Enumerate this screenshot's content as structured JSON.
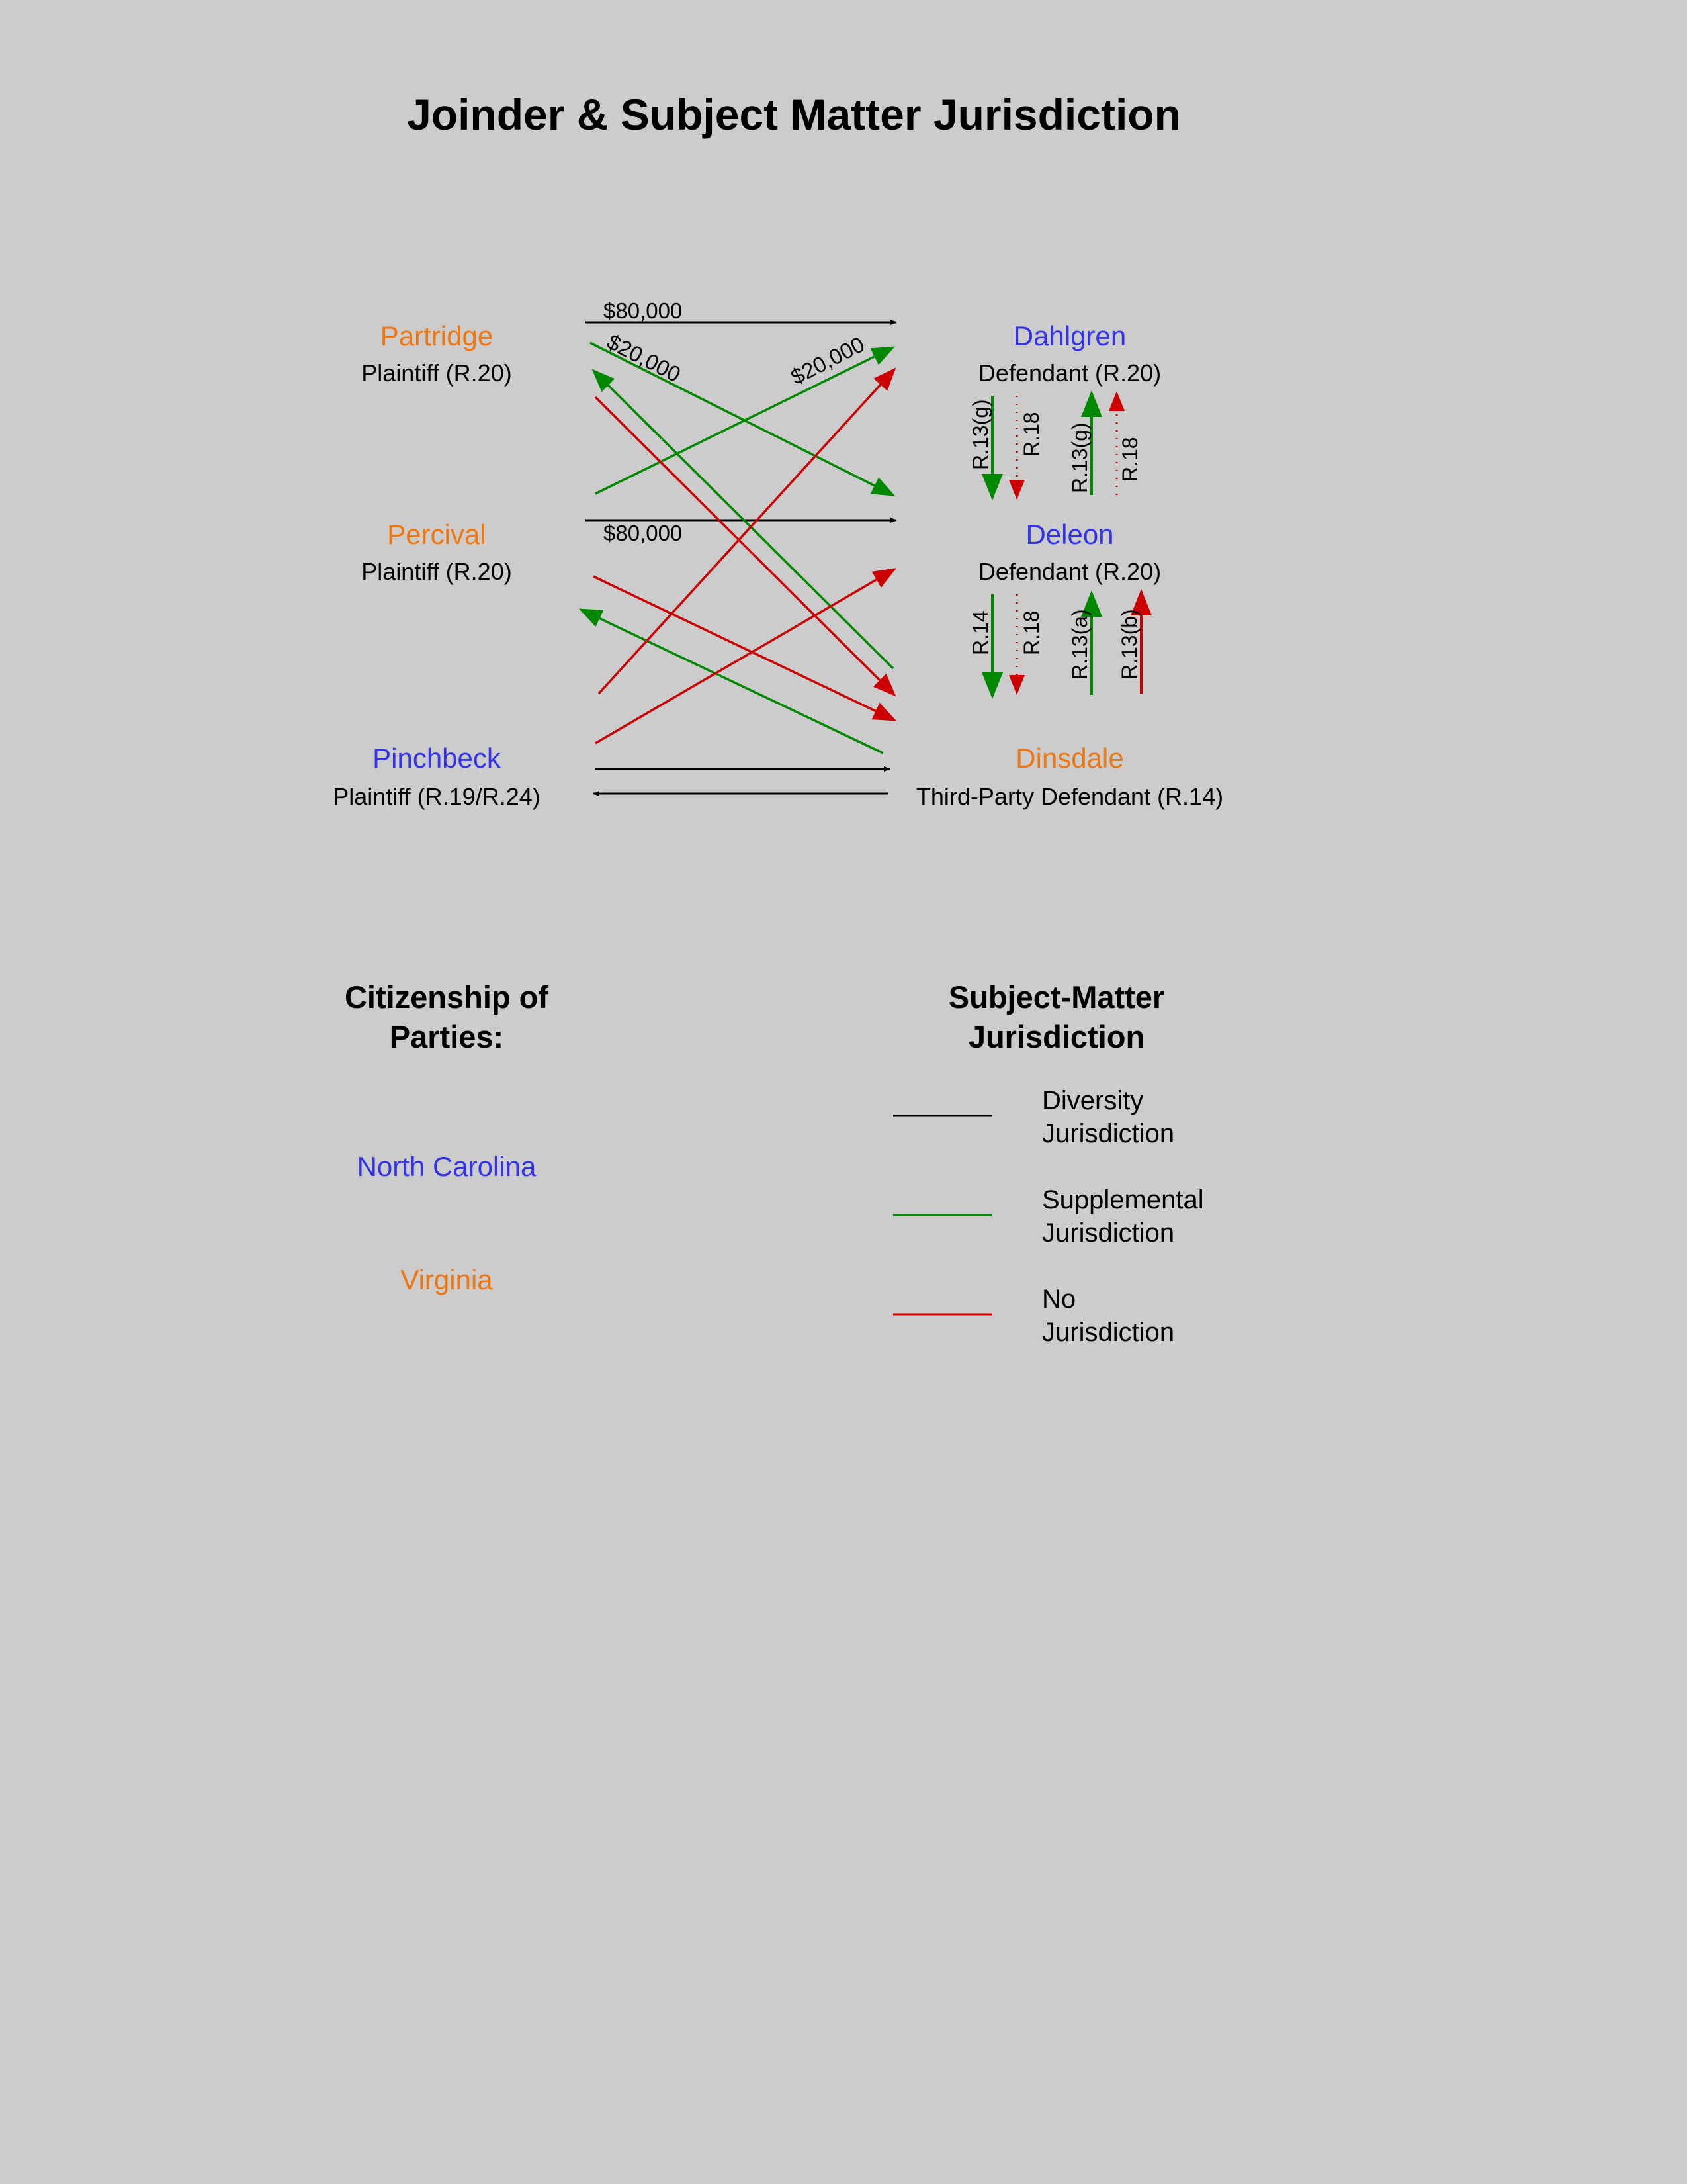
{
  "title": "Joinder & Subject Matter Jurisdiction",
  "colors": {
    "north_carolina": "#3333ee",
    "virginia": "#ee7711",
    "diversity": "#000000",
    "supplemental": "#008800",
    "none": "#cc0000"
  },
  "parties": {
    "partridge": {
      "name": "Partridge",
      "role": "Plaintiff (R.20)",
      "citizenship": "Virginia"
    },
    "percival": {
      "name": "Percival",
      "role": "Plaintiff (R.20)",
      "citizenship": "Virginia"
    },
    "pinchbeck": {
      "name": "Pinchbeck",
      "role": "Plaintiff (R.19/R.24)",
      "citizenship": "North Carolina"
    },
    "dahlgren": {
      "name": "Dahlgren",
      "role": "Defendant (R.20)",
      "citizenship": "North Carolina"
    },
    "deleon": {
      "name": "Deleon",
      "role": "Defendant (R.20)",
      "citizenship": "North Carolina"
    },
    "dinsdale": {
      "name": "Dinsdale",
      "role": "Third-Party Defendant (R.14)",
      "citizenship": "Virginia"
    }
  },
  "amounts": {
    "partridge_dahlgren": "$80,000",
    "partridge_deleon": "$20,000",
    "percival_dahlgren": "$20,000",
    "percival_deleon": "$80,000"
  },
  "rules": {
    "dahlgren_deleon_1": "R.13(g)",
    "dahlgren_deleon_2": "R.18",
    "deleon_dahlgren_1": "R.13(g)",
    "deleon_dahlgren_2": "R.18",
    "deleon_dinsdale_1": "R.14",
    "deleon_dinsdale_2": "R.18",
    "dinsdale_deleon_1": "R.13(a)",
    "dinsdale_deleon_2": "R.13(b)"
  },
  "citizenship": {
    "heading_line1": "Citizenship of",
    "heading_line2": "Parties:",
    "states": [
      "North Carolina",
      "Virginia"
    ]
  },
  "legend": {
    "heading_line1": "Subject-Matter",
    "heading_line2": "Jurisdiction",
    "items": [
      {
        "line1": "Diversity",
        "line2": "Jurisdiction",
        "color": "#000000"
      },
      {
        "line1": "Supplemental",
        "line2": "Jurisdiction",
        "color": "#008800"
      },
      {
        "line1": "No",
        "line2": "Jurisdiction",
        "color": "#cc0000"
      }
    ]
  }
}
